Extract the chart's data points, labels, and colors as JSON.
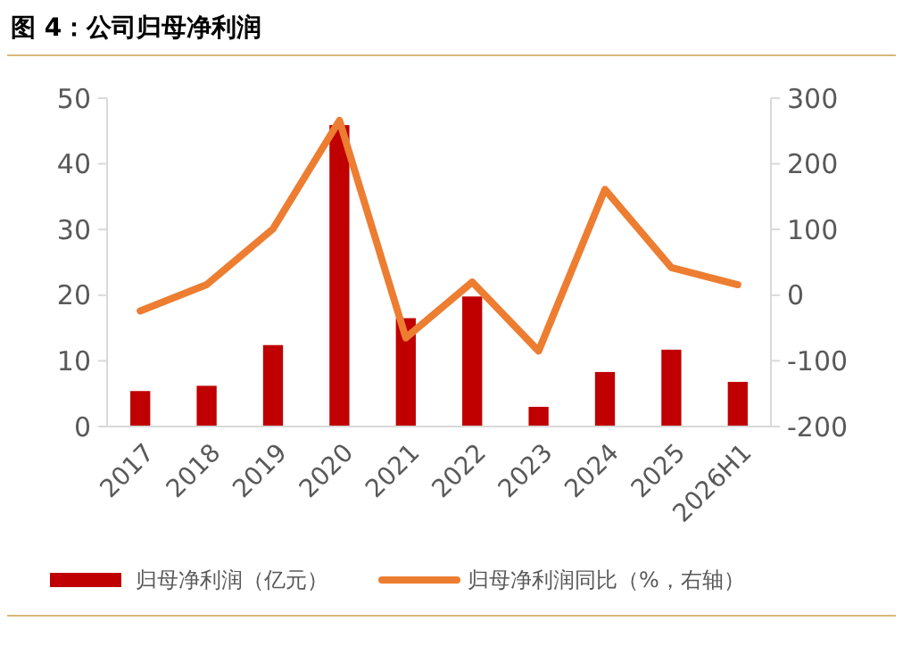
{
  "chart_data": {
    "type": "bar",
    "title": "图 4：公司归母净利润",
    "categories": [
      "2017",
      "2018",
      "2019",
      "2020",
      "2021",
      "2022",
      "2023",
      "2024",
      "2025",
      "2026H1"
    ],
    "series": [
      {
        "name": "归母净利润（亿元）",
        "color": "#c00000",
        "values": [
          5.4,
          6.2,
          12.4,
          45.9,
          16.5,
          19.8,
          3.0,
          8.3,
          11.7,
          6.8
        ]
      },
      {
        "name": "归母净利润同比（%，右轴）",
        "type": "line",
        "axis": "y2",
        "color": "#ed7d31",
        "values": [
          -24,
          16,
          101,
          266,
          -65,
          20,
          -85,
          161,
          42,
          16
        ]
      }
    ],
    "ylim": [
      0,
      50
    ],
    "yticks": [
      0,
      10,
      20,
      30,
      40,
      50
    ],
    "y2lim": [
      -200,
      300
    ],
    "y2ticks": [
      -200,
      -100,
      0,
      100,
      200,
      300
    ],
    "grid": false,
    "legend": "bottom",
    "marker": "none",
    "line_style": "solid"
  }
}
